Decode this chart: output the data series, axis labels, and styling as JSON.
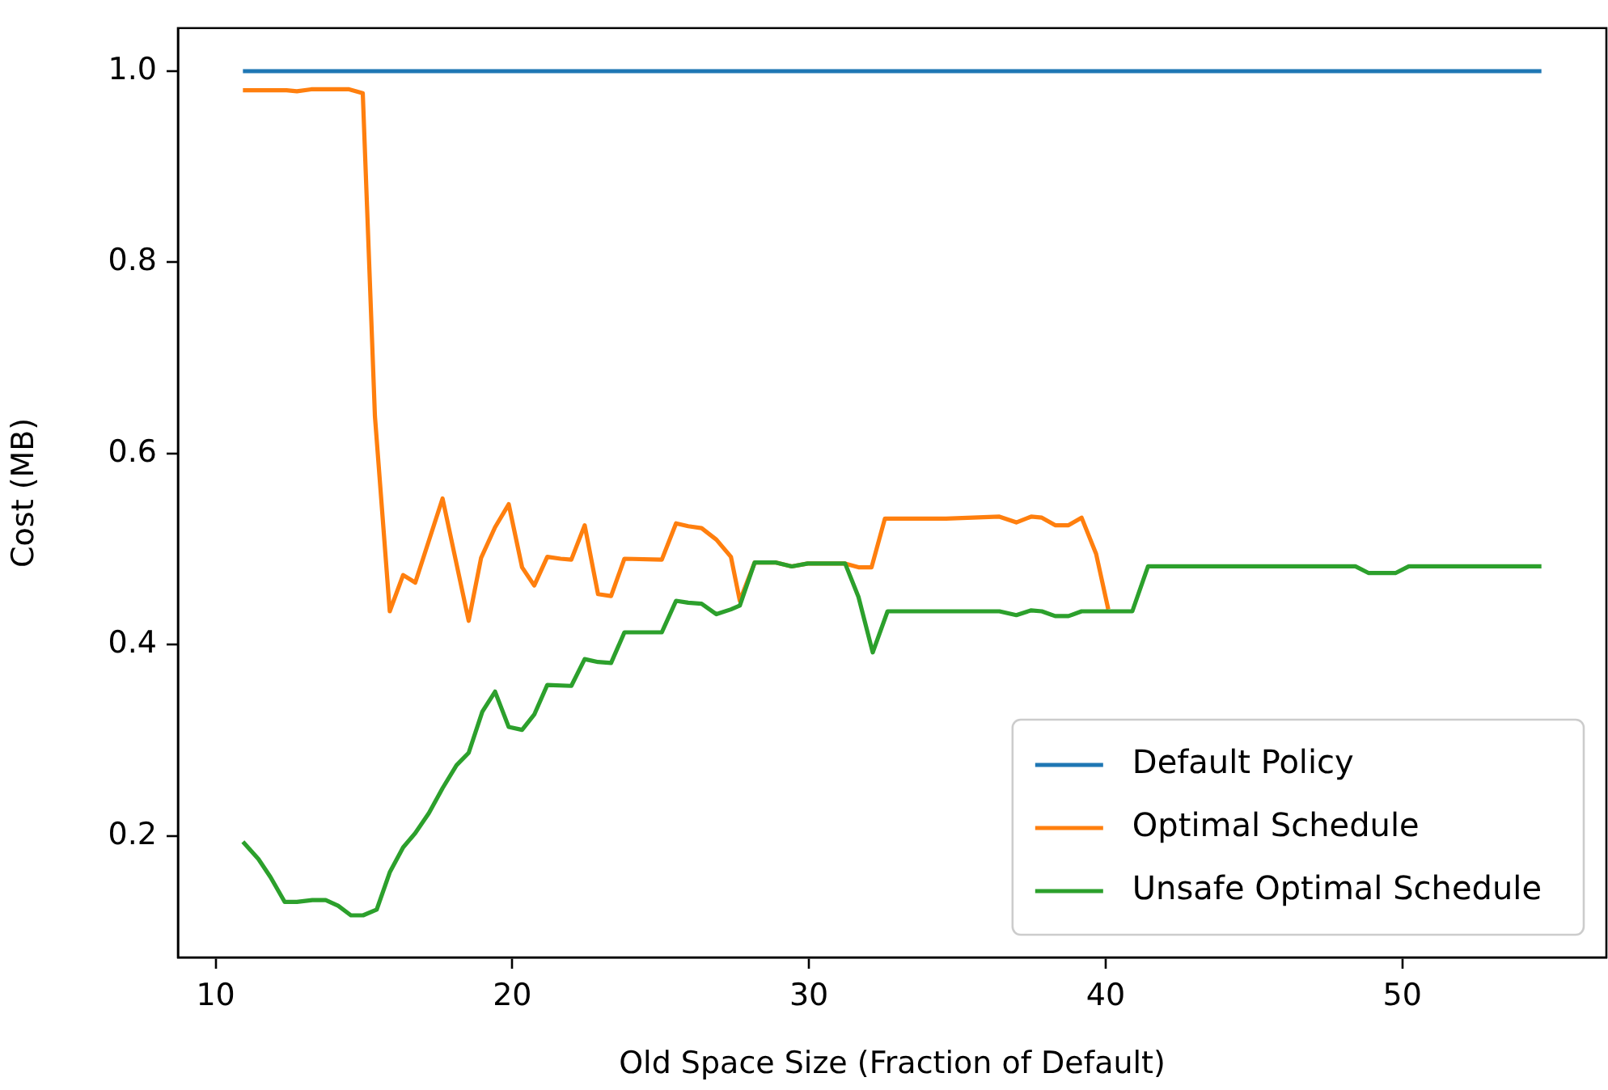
{
  "chart_data": {
    "type": "line",
    "xlabel": "Old Space Size (Fraction of Default)",
    "ylabel": "Cost (MB)",
    "xlim": [
      8.73,
      56.88
    ],
    "xticks": [
      10,
      20,
      30,
      40,
      50
    ],
    "ylim": [
      0.073,
      1.045
    ],
    "yticks": [
      {
        "value": 0.2,
        "label": "0.2"
      },
      {
        "value": 0.4,
        "label": "0.4"
      },
      {
        "value": 0.6,
        "label": "0.6"
      },
      {
        "value": 0.8,
        "label": "0.8"
      },
      {
        "value": 1.0,
        "label": "1.0"
      }
    ],
    "grid": false,
    "legend": "bottom right",
    "marker": "none",
    "line_style": "solid",
    "series": [
      {
        "name": "Default Policy",
        "color": "#1f77b4",
        "x": [
          10.92,
          54.69
        ],
        "values": [
          1.0,
          1.0
        ]
      },
      {
        "name": "Optimal Schedule",
        "color": "#ff7f0e",
        "x": [
          10.92,
          12.39,
          12.74,
          13.22,
          14.5,
          14.96,
          15.37,
          15.87,
          16.32,
          16.73,
          17.65,
          18.53,
          18.95,
          19.42,
          19.88,
          20.33,
          20.74,
          21.18,
          21.63,
          21.99,
          22.44,
          22.89,
          23.33,
          23.78,
          25.04,
          25.52,
          25.93,
          26.38,
          26.88,
          27.37,
          27.67,
          28.17,
          28.89,
          29.42,
          29.96,
          31.22,
          31.67,
          32.11,
          32.56,
          34.62,
          36.42,
          36.99,
          37.49,
          37.85,
          38.3,
          38.75,
          39.19,
          39.68,
          40.09
        ],
        "values": [
          0.98,
          0.98,
          0.979,
          0.981,
          0.981,
          0.977,
          0.639,
          0.435,
          0.473,
          0.465,
          0.553,
          0.425,
          0.491,
          0.523,
          0.547,
          0.481,
          0.462,
          0.492,
          0.49,
          0.489,
          0.525,
          0.453,
          0.451,
          0.49,
          0.489,
          0.527,
          0.524,
          0.522,
          0.51,
          0.492,
          0.446,
          0.486,
          0.486,
          0.482,
          0.485,
          0.485,
          0.481,
          0.481,
          0.532,
          0.532,
          0.534,
          0.528,
          0.534,
          0.533,
          0.525,
          0.525,
          0.533,
          0.495,
          0.437
        ]
      },
      {
        "name": "Unsafe Optimal Schedule",
        "color": "#2ca02c",
        "x": [
          10.92,
          11.44,
          11.85,
          12.33,
          12.74,
          13.26,
          13.71,
          14.13,
          14.56,
          14.97,
          15.43,
          15.87,
          16.32,
          16.73,
          17.19,
          17.65,
          18.12,
          18.53,
          18.99,
          19.42,
          19.88,
          20.33,
          20.74,
          21.18,
          21.99,
          22.44,
          22.89,
          23.33,
          23.78,
          25.04,
          25.52,
          25.93,
          26.38,
          26.88,
          27.37,
          27.67,
          28.17,
          28.89,
          29.42,
          29.96,
          31.22,
          31.67,
          32.15,
          32.65,
          36.42,
          36.99,
          37.49,
          37.85,
          38.3,
          38.75,
          39.19,
          40.9,
          41.43,
          48.42,
          48.87,
          49.77,
          50.22,
          54.69
        ],
        "values": [
          0.194,
          0.176,
          0.157,
          0.131,
          0.131,
          0.133,
          0.133,
          0.127,
          0.117,
          0.117,
          0.123,
          0.162,
          0.188,
          0.203,
          0.224,
          0.25,
          0.274,
          0.287,
          0.33,
          0.351,
          0.314,
          0.311,
          0.327,
          0.358,
          0.357,
          0.385,
          0.382,
          0.381,
          0.413,
          0.413,
          0.446,
          0.444,
          0.443,
          0.432,
          0.437,
          0.441,
          0.486,
          0.486,
          0.482,
          0.485,
          0.485,
          0.45,
          0.392,
          0.435,
          0.435,
          0.431,
          0.436,
          0.435,
          0.43,
          0.43,
          0.435,
          0.435,
          0.482,
          0.482,
          0.475,
          0.475,
          0.482,
          0.482
        ]
      }
    ]
  }
}
